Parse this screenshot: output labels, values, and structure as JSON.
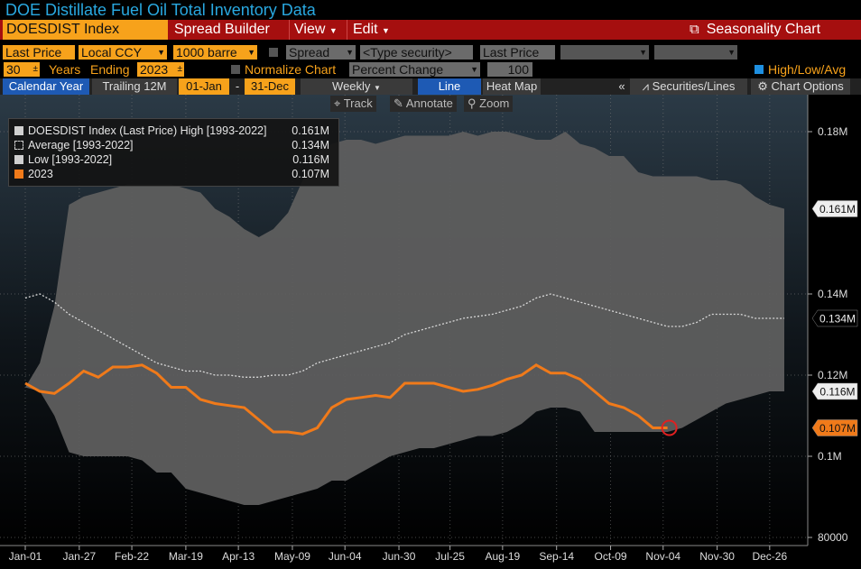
{
  "window": {
    "title": "DOE Distillate Fuel Oil Total Inventory Data"
  },
  "menubar": {
    "security": "DOESDIST Index",
    "items": [
      "Spread Builder",
      "View",
      "Edit"
    ],
    "right_label": "Seasonality Chart"
  },
  "toolbar1": {
    "price_field": "Last Price",
    "currency": "Local CCY",
    "units": "1000 barre",
    "spread": "Spread",
    "type_security": "<Type security>",
    "price_field2": "Last Price"
  },
  "toolbar2": {
    "years": "30",
    "years_label": "Years",
    "ending_label": "Ending",
    "ending_year": "2023",
    "normalize_label": "Normalize Chart",
    "normalize_mode": "Percent Change",
    "normalize_value": "100",
    "hla_label": "High/Low/Avg"
  },
  "tabs": {
    "calendar_year": "Calendar Year",
    "trailing": "Trailing 12M",
    "start": "01-Jan",
    "dash": "-",
    "end": "31-Dec",
    "frequency": "Weekly",
    "line": "Line",
    "heatmap": "Heat Map",
    "collapse": "«",
    "securities_lines": "Securities/Lines",
    "chart_options": "Chart Options"
  },
  "chart_tools": {
    "track": "Track",
    "annotate": "Annotate",
    "zoom": "Zoom"
  },
  "colors": {
    "band": "#5e5e5e",
    "avg": "#d0d0d0",
    "current": "#f07a1a",
    "menu": "#a50f0f",
    "accent": "#f7a21b"
  },
  "chart_data": {
    "type": "line",
    "title": "",
    "xlabel": "",
    "ylabel": "",
    "ylim": [
      80000,
      190000
    ],
    "y_ticks": [
      {
        "value": 180000,
        "label": "0.18M"
      },
      {
        "value": 140000,
        "label": "0.14M"
      },
      {
        "value": 120000,
        "label": "0.12M"
      },
      {
        "value": 100000,
        "label": "0.1M"
      },
      {
        "value": 80000,
        "label": "80000"
      }
    ],
    "x_ticks": [
      {
        "week": 0,
        "label": "Jan-01"
      },
      {
        "week": 3.7,
        "label": "Jan-27"
      },
      {
        "week": 7.3,
        "label": "Feb-22"
      },
      {
        "week": 11,
        "label": "Mar-19"
      },
      {
        "week": 14.6,
        "label": "Apr-13"
      },
      {
        "week": 18.3,
        "label": "May-09"
      },
      {
        "week": 21.9,
        "label": "Jun-04"
      },
      {
        "week": 25.6,
        "label": "Jun-30"
      },
      {
        "week": 29.1,
        "label": "Jul-25"
      },
      {
        "week": 32.7,
        "label": "Aug-19"
      },
      {
        "week": 36.4,
        "label": "Sep-14"
      },
      {
        "week": 40.1,
        "label": "Oct-09"
      },
      {
        "week": 43.7,
        "label": "Nov-04"
      },
      {
        "week": 47.4,
        "label": "Nov-30"
      },
      {
        "week": 51,
        "label": "Dec-26"
      }
    ],
    "legend": [
      {
        "name": "DOESDIST Index (Last Price) High [1993-2022]",
        "value": "0.161M"
      },
      {
        "name": "Average  [1993-2022]",
        "value": "0.134M"
      },
      {
        "name": "Low  [1993-2022]",
        "value": "0.116M"
      },
      {
        "name": "2023",
        "value": "0.107M"
      }
    ],
    "end_badges": [
      {
        "series": "high",
        "value": 161000,
        "label": "0.161M"
      },
      {
        "series": "avg",
        "value": 134000,
        "label": "0.134M"
      },
      {
        "series": "low",
        "value": 116000,
        "label": "0.116M"
      },
      {
        "series": "current",
        "value": 107000,
        "label": "0.107M"
      }
    ],
    "series": [
      {
        "name": "High [1993-2022]",
        "x": [
          0,
          1,
          2,
          3,
          4,
          5,
          6,
          7,
          8,
          9,
          10,
          11,
          12,
          13,
          14,
          15,
          16,
          17,
          18,
          19,
          20,
          21,
          22,
          23,
          24,
          25,
          26,
          27,
          28,
          29,
          30,
          31,
          32,
          33,
          34,
          35,
          36,
          37,
          38,
          39,
          40,
          41,
          42,
          43,
          44,
          45,
          46,
          47,
          48,
          49,
          50,
          51,
          52
        ],
        "values": [
          117000,
          123000,
          137000,
          162000,
          164000,
          165000,
          166000,
          167000,
          167000,
          167000,
          167000,
          166000,
          165000,
          161000,
          159000,
          156000,
          154000,
          156000,
          160000,
          168000,
          175000,
          177000,
          178000,
          178000,
          177000,
          178000,
          179000,
          179000,
          179000,
          179000,
          180000,
          179000,
          180000,
          180000,
          179000,
          178000,
          178000,
          180000,
          177000,
          176000,
          174000,
          174000,
          170000,
          169000,
          169000,
          169000,
          169000,
          168000,
          168000,
          167000,
          164000,
          162000,
          161000
        ]
      },
      {
        "name": "Average [1993-2022]",
        "x": [
          0,
          1,
          2,
          3,
          4,
          5,
          6,
          7,
          8,
          9,
          10,
          11,
          12,
          13,
          14,
          15,
          16,
          17,
          18,
          19,
          20,
          21,
          22,
          23,
          24,
          25,
          26,
          27,
          28,
          29,
          30,
          31,
          32,
          33,
          34,
          35,
          36,
          37,
          38,
          39,
          40,
          41,
          42,
          43,
          44,
          45,
          46,
          47,
          48,
          49,
          50,
          51,
          52
        ],
        "values": [
          139000,
          140000,
          138000,
          135000,
          133000,
          131000,
          129000,
          127000,
          125000,
          123000,
          122000,
          121000,
          121000,
          120000,
          120000,
          119500,
          119500,
          120000,
          120000,
          121000,
          123000,
          124000,
          125000,
          126000,
          127000,
          128000,
          130000,
          131000,
          132000,
          133000,
          134000,
          134500,
          135000,
          136000,
          137000,
          139000,
          140000,
          139000,
          138000,
          137000,
          136000,
          135000,
          134000,
          133000,
          132000,
          132000,
          133000,
          135000,
          135000,
          135000,
          134000,
          134000,
          134000
        ]
      },
      {
        "name": "Low [1993-2022]",
        "x": [
          0,
          1,
          2,
          3,
          4,
          5,
          6,
          7,
          8,
          9,
          10,
          11,
          12,
          13,
          14,
          15,
          16,
          17,
          18,
          19,
          20,
          21,
          22,
          23,
          24,
          25,
          26,
          27,
          28,
          29,
          30,
          31,
          32,
          33,
          34,
          35,
          36,
          37,
          38,
          39,
          40,
          41,
          42,
          43,
          44,
          45,
          46,
          47,
          48,
          49,
          50,
          51,
          52
        ],
        "values": [
          117000,
          116000,
          110000,
          101000,
          100000,
          100000,
          100000,
          100000,
          99000,
          96000,
          96000,
          92000,
          91000,
          90000,
          89000,
          88000,
          88000,
          89000,
          90000,
          91000,
          92000,
          94000,
          94000,
          96000,
          98000,
          100000,
          101000,
          102000,
          102000,
          103000,
          104000,
          105000,
          105000,
          106000,
          108000,
          111000,
          112000,
          112000,
          111000,
          106000,
          106000,
          106000,
          106000,
          106000,
          106000,
          107000,
          109000,
          111000,
          113000,
          114000,
          115000,
          116000,
          116000
        ]
      },
      {
        "name": "2023",
        "x": [
          0,
          1,
          2,
          3,
          4,
          5,
          6,
          7,
          8,
          9,
          10,
          11,
          12,
          13,
          14,
          15,
          16,
          17,
          18,
          19,
          20,
          21,
          22,
          23,
          24,
          25,
          26,
          27,
          28,
          29,
          30,
          31,
          32,
          33,
          34,
          35,
          36,
          37,
          38,
          39,
          40,
          41,
          42,
          43,
          44
        ],
        "values": [
          118000,
          116000,
          115500,
          118000,
          121000,
          119500,
          122000,
          122000,
          122500,
          120500,
          117000,
          117000,
          114000,
          113000,
          112500,
          112000,
          109000,
          106000,
          106000,
          105500,
          107000,
          112000,
          114000,
          114500,
          115000,
          114500,
          118000,
          118000,
          118000,
          117000,
          116000,
          116500,
          117500,
          119000,
          120000,
          122500,
          120500,
          120500,
          119000,
          116000,
          113000,
          112000,
          110000,
          107000,
          107000
        ]
      }
    ]
  }
}
